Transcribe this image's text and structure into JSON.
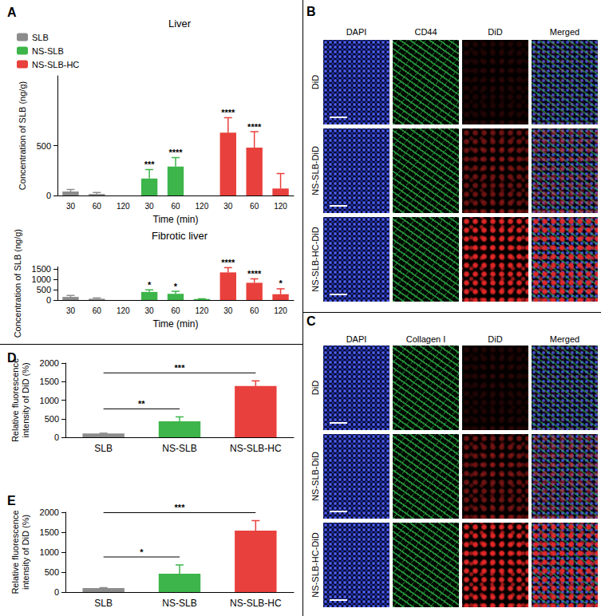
{
  "chart_data": [
    {
      "panel": "A",
      "type": "bar",
      "title": "Liver",
      "categories": [
        "30",
        "60",
        "120"
      ],
      "xlabel": "Time (min)",
      "ylabel": "Concentration of SLB (ng/g)",
      "ylim": [
        0,
        1200
      ],
      "yticks": [
        0,
        500
      ],
      "legend": "upper left",
      "series": [
        {
          "name": "SLB",
          "color": "#8c8c8c",
          "values": [
            40,
            15,
            0
          ],
          "errors": [
            20,
            15,
            0
          ],
          "significance": [
            null,
            null,
            null
          ]
        },
        {
          "name": "NS-SLB",
          "color": "#3db54a",
          "values": [
            170,
            290,
            0
          ],
          "errors": [
            90,
            90,
            0
          ],
          "significance": [
            "***",
            "****",
            null
          ]
        },
        {
          "name": "NS-SLB-HC",
          "color": "#e8403c",
          "values": [
            630,
            480,
            70
          ],
          "errors": [
            150,
            160,
            150
          ],
          "significance": [
            "****",
            "****",
            null
          ]
        }
      ]
    },
    {
      "type": "bar",
      "title": "Fibrotic liver",
      "categories": [
        "30",
        "60",
        "120"
      ],
      "xlabel": "Time (min)",
      "ylabel": "Concentration of SLB (ng/g)",
      "ylim": [
        0,
        1600
      ],
      "yticks": [
        0,
        500,
        1000,
        1500
      ],
      "series": [
        {
          "name": "SLB",
          "color": "#8c8c8c",
          "values": [
            150,
            60,
            0
          ],
          "errors": [
            70,
            40,
            0
          ],
          "significance": [
            null,
            null,
            null
          ]
        },
        {
          "name": "NS-SLB",
          "color": "#3db54a",
          "values": [
            390,
            300,
            50
          ],
          "errors": [
            100,
            120,
            10
          ],
          "significance": [
            "*",
            "*",
            null
          ]
        },
        {
          "name": "NS-SLB-HC",
          "color": "#e8403c",
          "values": [
            1330,
            830,
            280
          ],
          "errors": [
            230,
            190,
            260
          ],
          "significance": [
            "****",
            "****",
            "*"
          ]
        }
      ]
    },
    {
      "panel": "D",
      "type": "bar",
      "categories": [
        "SLB",
        "NS-SLB",
        "NS-SLB-HC"
      ],
      "values": [
        100,
        430,
        1380
      ],
      "errors": [
        10,
        120,
        140
      ],
      "colors": [
        "#8c8c8c",
        "#3db54a",
        "#e8403c"
      ],
      "ylabel": "Relative fluorescence\nintensity of DiD (%)",
      "ylim": [
        0,
        2000
      ],
      "yticks": [
        0,
        500,
        1000,
        1500,
        2000
      ],
      "annotations": [
        {
          "from": "SLB",
          "to": "NS-SLB",
          "text": "**"
        },
        {
          "from": "SLB",
          "to": "NS-SLB-HC",
          "text": "***"
        }
      ]
    },
    {
      "panel": "E",
      "type": "bar",
      "categories": [
        "SLB",
        "NS-SLB",
        "NS-SLB-HC"
      ],
      "values": [
        100,
        460,
        1540
      ],
      "errors": [
        10,
        220,
        250
      ],
      "colors": [
        "#8c8c8c",
        "#3db54a",
        "#e8403c"
      ],
      "ylabel": "Relative fluorescence\nintensity of DiD (%)",
      "ylim": [
        0,
        2000
      ],
      "yticks": [
        0,
        500,
        1000,
        1500,
        2000
      ],
      "annotations": [
        {
          "from": "SLB",
          "to": "NS-SLB",
          "text": "*"
        },
        {
          "from": "SLB",
          "to": "NS-SLB-HC",
          "text": "***"
        }
      ]
    }
  ],
  "image_panels": [
    {
      "panel": "B",
      "columns": [
        "DAPI",
        "CD44",
        "DiD",
        "Merged"
      ],
      "rows": [
        "DiD",
        "NS-SLB-DiD",
        "NS-SLB-HC-DiD"
      ]
    },
    {
      "panel": "C",
      "columns": [
        "DAPI",
        "Collagen I",
        "DiD",
        "Merged"
      ],
      "rows": [
        "DiD",
        "NS-SLB-DiD",
        "NS-SLB-HC-DiD"
      ]
    }
  ]
}
